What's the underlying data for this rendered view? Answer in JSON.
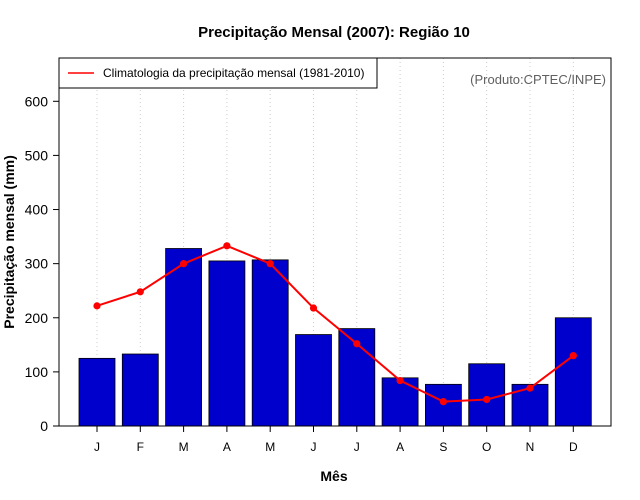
{
  "chart_data": {
    "type": "bar",
    "title": "Precipitação Mensal (2007): Região 10",
    "xlabel": "Mês",
    "ylabel": "Precipitação mensal (mm)",
    "ylim": [
      0,
      680
    ],
    "yticks": [
      0,
      100,
      200,
      300,
      400,
      500,
      600
    ],
    "grid": "vertical-dotted",
    "legend_position": "top-left",
    "source_note": "(Produto:CPTEC/INPE)",
    "categories": [
      "J",
      "F",
      "M",
      "A",
      "M",
      "J",
      "J",
      "A",
      "S",
      "O",
      "N",
      "D"
    ],
    "series": [
      {
        "name": "Precipitação mensal 2007",
        "kind": "bar",
        "color": "#0000cd",
        "values": [
          125,
          133,
          328,
          305,
          307,
          169,
          180,
          89,
          77,
          115,
          77,
          200
        ]
      },
      {
        "name": "Climatologia da precipitação mensal (1981-2010)",
        "kind": "line",
        "color": "#ff0000",
        "values": [
          222,
          248,
          300,
          333,
          300,
          218,
          152,
          84,
          45,
          49,
          70,
          130
        ]
      }
    ],
    "legend": [
      "Climatologia da precipitação mensal (1981-2010)"
    ]
  }
}
